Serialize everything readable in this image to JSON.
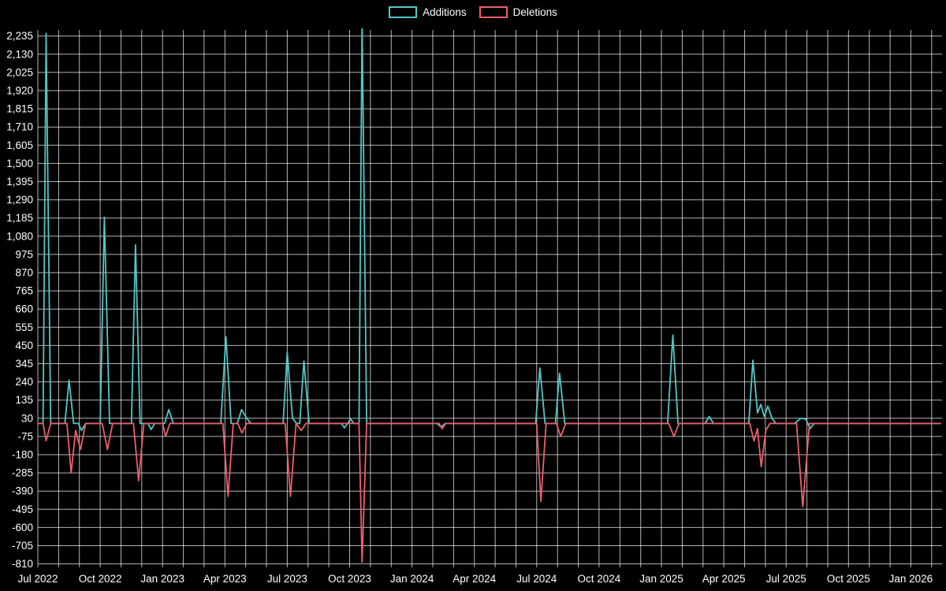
{
  "chart_data": {
    "type": "line",
    "title": "",
    "xlabel": "",
    "ylabel": "",
    "background": "#000000",
    "grid_color": "rgba(255,255,255,0.7)",
    "text_color": "#ffffff",
    "grid": true,
    "legend_position": "top-center",
    "x_unit": "months since Jul 2022, weekly samples",
    "xlim": [
      0,
      43.5
    ],
    "ylim": [
      -830,
      2270
    ],
    "xticks": [
      {
        "m": 0,
        "label": "Jul 2022"
      },
      {
        "m": 3,
        "label": "Oct 2022"
      },
      {
        "m": 6,
        "label": "Jan 2023"
      },
      {
        "m": 9,
        "label": "Apr 2023"
      },
      {
        "m": 12,
        "label": "Jul 2023"
      },
      {
        "m": 15,
        "label": "Oct 2023"
      },
      {
        "m": 18,
        "label": "Jan 2024"
      },
      {
        "m": 21,
        "label": "Apr 2024"
      },
      {
        "m": 24,
        "label": "Jul 2024"
      },
      {
        "m": 27,
        "label": "Oct 2024"
      },
      {
        "m": 30,
        "label": "Jan 2025"
      },
      {
        "m": 33,
        "label": "Apr 2025"
      },
      {
        "m": 36,
        "label": "Jul 2025"
      },
      {
        "m": 39,
        "label": "Oct 2025"
      },
      {
        "m": 42,
        "label": "Jan 2026"
      }
    ],
    "yticks": [
      {
        "v": 2235,
        "label": "2,235"
      },
      {
        "v": 2130,
        "label": "2,130"
      },
      {
        "v": 2025,
        "label": "2,025"
      },
      {
        "v": 1920,
        "label": "1,920"
      },
      {
        "v": 1815,
        "label": "1,815"
      },
      {
        "v": 1710,
        "label": "1,710"
      },
      {
        "v": 1605,
        "label": "1,605"
      },
      {
        "v": 1500,
        "label": "1,500"
      },
      {
        "v": 1395,
        "label": "1,395"
      },
      {
        "v": 1290,
        "label": "1,290"
      },
      {
        "v": 1185,
        "label": "1,185"
      },
      {
        "v": 1080,
        "label": "1,080"
      },
      {
        "v": 975,
        "label": "975"
      },
      {
        "v": 870,
        "label": "870"
      },
      {
        "v": 765,
        "label": "765"
      },
      {
        "v": 660,
        "label": "660"
      },
      {
        "v": 555,
        "label": "555"
      },
      {
        "v": 450,
        "label": "450"
      },
      {
        "v": 345,
        "label": "345"
      },
      {
        "v": 240,
        "label": "240"
      },
      {
        "v": 135,
        "label": "135"
      },
      {
        "v": 30,
        "label": "30"
      },
      {
        "v": -75,
        "label": "-75"
      },
      {
        "v": -180,
        "label": "-180"
      },
      {
        "v": -285,
        "label": "-285"
      },
      {
        "v": -390,
        "label": "-390"
      },
      {
        "v": -495,
        "label": "-495"
      },
      {
        "v": -600,
        "label": "-600"
      },
      {
        "v": -705,
        "label": "-705"
      },
      {
        "v": -810,
        "label": "-810"
      }
    ],
    "series": [
      {
        "name": "Additions",
        "color": "#52c7c4",
        "points": [
          [
            0,
            0
          ],
          [
            0.25,
            0
          ],
          [
            0.4,
            2250
          ],
          [
            0.62,
            0
          ],
          [
            1.3,
            0
          ],
          [
            1.5,
            250
          ],
          [
            1.72,
            0
          ],
          [
            1.95,
            0
          ],
          [
            2.1,
            -40
          ],
          [
            2.3,
            0
          ],
          [
            3.0,
            0
          ],
          [
            3.2,
            1190
          ],
          [
            3.45,
            0
          ],
          [
            4.5,
            0
          ],
          [
            4.7,
            1030
          ],
          [
            4.92,
            0
          ],
          [
            5.3,
            0
          ],
          [
            5.45,
            -35
          ],
          [
            5.62,
            0
          ],
          [
            6.1,
            0
          ],
          [
            6.3,
            80
          ],
          [
            6.52,
            0
          ],
          [
            8.8,
            0
          ],
          [
            9.05,
            500
          ],
          [
            9.3,
            0
          ],
          [
            9.6,
            0
          ],
          [
            9.8,
            80
          ],
          [
            10.05,
            30
          ],
          [
            10.25,
            0
          ],
          [
            11.8,
            0
          ],
          [
            12.0,
            410
          ],
          [
            12.25,
            30
          ],
          [
            12.45,
            0
          ],
          [
            12.6,
            0
          ],
          [
            12.8,
            360
          ],
          [
            13.05,
            0
          ],
          [
            14.6,
            0
          ],
          [
            14.75,
            -25
          ],
          [
            14.9,
            0
          ],
          [
            15.05,
            25
          ],
          [
            15.2,
            0
          ],
          [
            15.45,
            0
          ],
          [
            15.6,
            2320
          ],
          [
            15.82,
            0
          ],
          [
            19.2,
            0
          ],
          [
            19.4,
            -20
          ],
          [
            19.6,
            0
          ],
          [
            23.95,
            0
          ],
          [
            24.15,
            320
          ],
          [
            24.4,
            0
          ],
          [
            24.9,
            0
          ],
          [
            25.1,
            290
          ],
          [
            25.35,
            0
          ],
          [
            30.3,
            0
          ],
          [
            30.55,
            510
          ],
          [
            30.8,
            0
          ],
          [
            32.1,
            0
          ],
          [
            32.3,
            40
          ],
          [
            32.5,
            0
          ],
          [
            34.2,
            0
          ],
          [
            34.4,
            365
          ],
          [
            34.62,
            60
          ],
          [
            34.78,
            110
          ],
          [
            34.95,
            40
          ],
          [
            35.12,
            100
          ],
          [
            35.32,
            30
          ],
          [
            35.5,
            0
          ],
          [
            36.4,
            0
          ],
          [
            36.7,
            30
          ],
          [
            36.95,
            25
          ],
          [
            37.15,
            -30
          ],
          [
            37.35,
            0
          ],
          [
            43.45,
            0
          ]
        ]
      },
      {
        "name": "Deletions",
        "color": "#ec5f6e",
        "points": [
          [
            0,
            0
          ],
          [
            0.25,
            0
          ],
          [
            0.4,
            -100
          ],
          [
            0.62,
            0
          ],
          [
            1.4,
            0
          ],
          [
            1.6,
            -285
          ],
          [
            1.82,
            -40
          ],
          [
            2.05,
            -150
          ],
          [
            2.3,
            0
          ],
          [
            3.1,
            0
          ],
          [
            3.35,
            -150
          ],
          [
            3.6,
            0
          ],
          [
            4.6,
            0
          ],
          [
            4.85,
            -330
          ],
          [
            5.1,
            0
          ],
          [
            6.0,
            0
          ],
          [
            6.15,
            -75
          ],
          [
            6.35,
            0
          ],
          [
            8.9,
            0
          ],
          [
            9.15,
            -420
          ],
          [
            9.4,
            0
          ],
          [
            9.62,
            0
          ],
          [
            9.82,
            -55
          ],
          [
            10.05,
            0
          ],
          [
            11.9,
            0
          ],
          [
            12.15,
            -420
          ],
          [
            12.42,
            0
          ],
          [
            12.68,
            -40
          ],
          [
            12.9,
            0
          ],
          [
            15.45,
            0
          ],
          [
            15.6,
            -800
          ],
          [
            15.82,
            0
          ],
          [
            19.3,
            0
          ],
          [
            19.45,
            -30
          ],
          [
            19.62,
            0
          ],
          [
            24.0,
            0
          ],
          [
            24.2,
            -450
          ],
          [
            24.45,
            0
          ],
          [
            24.95,
            0
          ],
          [
            25.15,
            -75
          ],
          [
            25.4,
            0
          ],
          [
            30.35,
            0
          ],
          [
            30.6,
            -75
          ],
          [
            30.85,
            0
          ],
          [
            34.25,
            0
          ],
          [
            34.45,
            -100
          ],
          [
            34.62,
            -30
          ],
          [
            34.8,
            -250
          ],
          [
            35.02,
            -40
          ],
          [
            35.22,
            0
          ],
          [
            36.5,
            0
          ],
          [
            36.8,
            -480
          ],
          [
            37.12,
            0
          ],
          [
            43.45,
            0
          ]
        ]
      }
    ]
  }
}
